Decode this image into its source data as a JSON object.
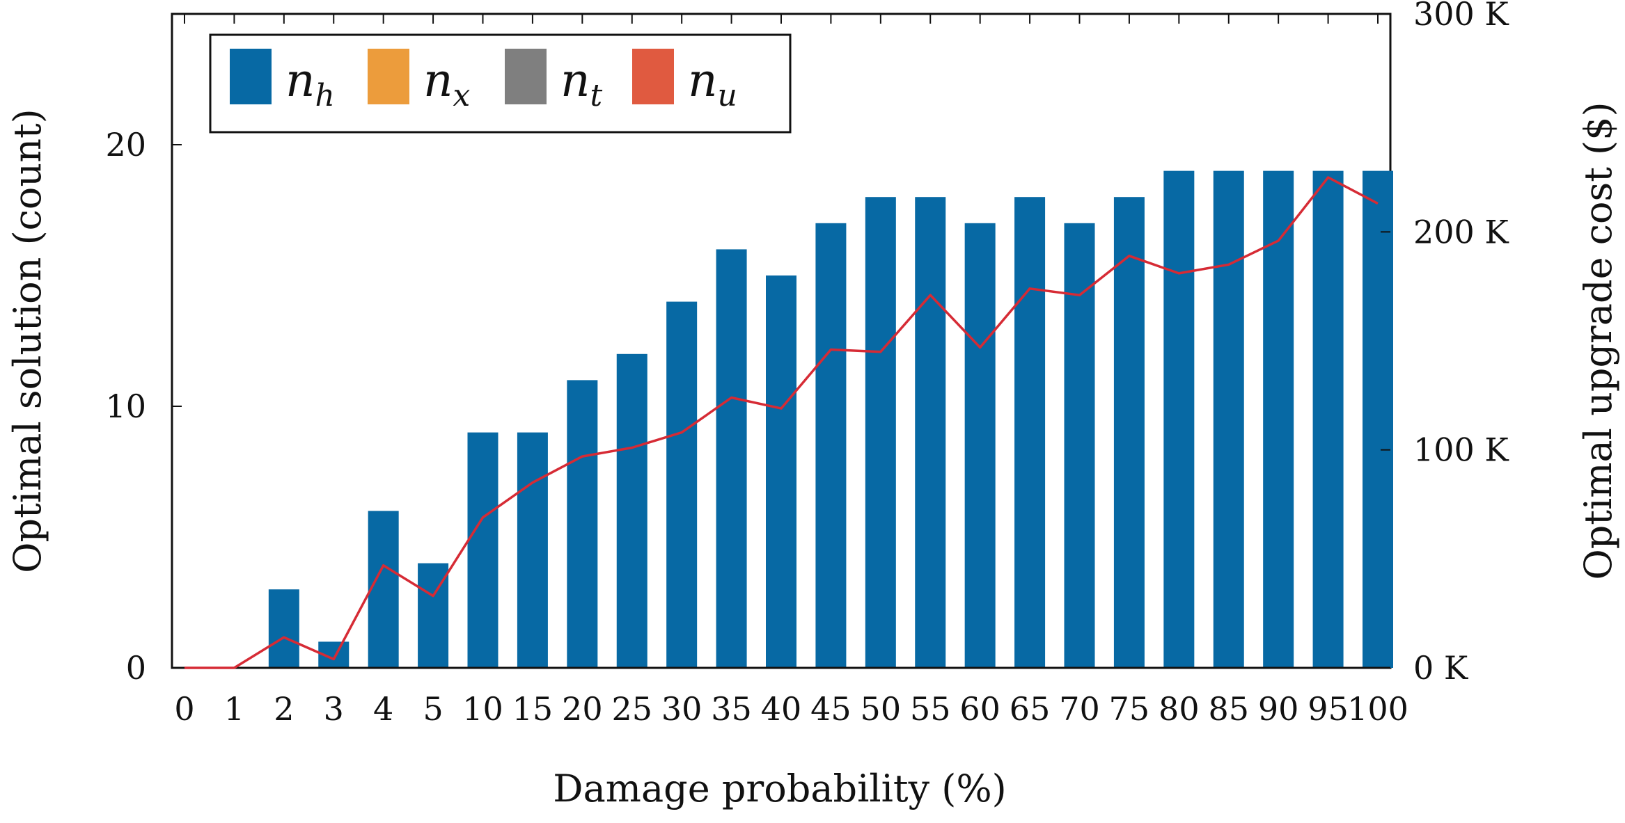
{
  "chart_data": {
    "type": "bar",
    "xlabel": "Damage probability (%)",
    "ylabel_left": "Optimal solution (count)",
    "ylabel_right": "Optimal upgrade cost ($)",
    "categories": [
      "0",
      "1",
      "2",
      "3",
      "4",
      "5",
      "10",
      "15",
      "20",
      "25",
      "30",
      "35",
      "40",
      "45",
      "50",
      "55",
      "60",
      "65",
      "70",
      "75",
      "80",
      "85",
      "90",
      "95",
      "100"
    ],
    "series": [
      {
        "name": "n_h",
        "label_main": "n",
        "label_sub": "h",
        "color": "#0769a4",
        "axis": "left",
        "values": [
          0,
          0,
          3,
          1,
          6,
          4,
          9,
          9,
          11,
          12,
          14,
          16,
          15,
          17,
          18,
          18,
          17,
          18,
          17,
          18,
          19,
          19,
          19,
          19,
          19
        ]
      },
      {
        "name": "n_x",
        "label_main": "n",
        "label_sub": "x",
        "color": "#ec9c3c",
        "axis": "left",
        "values": [
          0,
          0,
          0,
          0,
          0,
          0,
          0,
          0,
          0,
          0,
          0,
          0,
          0,
          0,
          0,
          0,
          0,
          0,
          0,
          0,
          0,
          0,
          0,
          0,
          0
        ]
      },
      {
        "name": "n_t",
        "label_main": "n",
        "label_sub": "t",
        "color": "#7f7f7f",
        "axis": "left",
        "values": [
          0,
          0,
          0,
          0,
          0,
          0,
          0,
          0,
          0,
          0,
          0,
          0,
          0,
          0,
          0,
          0,
          0,
          0,
          0,
          0,
          0,
          0,
          0,
          0,
          0
        ]
      },
      {
        "name": "n_u",
        "label_main": "n",
        "label_sub": "u",
        "color": "#e05a40",
        "axis": "left",
        "values": [
          0,
          0,
          0,
          0,
          0,
          0,
          0,
          0,
          0,
          0,
          0,
          0,
          0,
          0,
          0,
          0,
          0,
          0,
          0,
          0,
          0,
          0,
          0,
          0,
          0
        ]
      }
    ],
    "cost_line": {
      "name": "Optimal upgrade cost",
      "color": "#d62b35",
      "axis": "right",
      "values": [
        0,
        0,
        14000,
        4000,
        47000,
        33000,
        69000,
        85000,
        97000,
        101000,
        108000,
        124000,
        119000,
        146000,
        145000,
        171000,
        147000,
        174000,
        171000,
        189000,
        181000,
        185000,
        196000,
        225000,
        213000
      ]
    },
    "ylim_left": [
      0,
      25
    ],
    "yticks_left": [
      0,
      10,
      20
    ],
    "ylim_right": [
      0,
      300000
    ],
    "yticks_right": [
      0,
      100000,
      200000,
      300000
    ],
    "ytick_labels_right": [
      "0 K",
      "100 K",
      "200 K",
      "300 K"
    ],
    "legend_position": "top-left",
    "grid": false
  }
}
